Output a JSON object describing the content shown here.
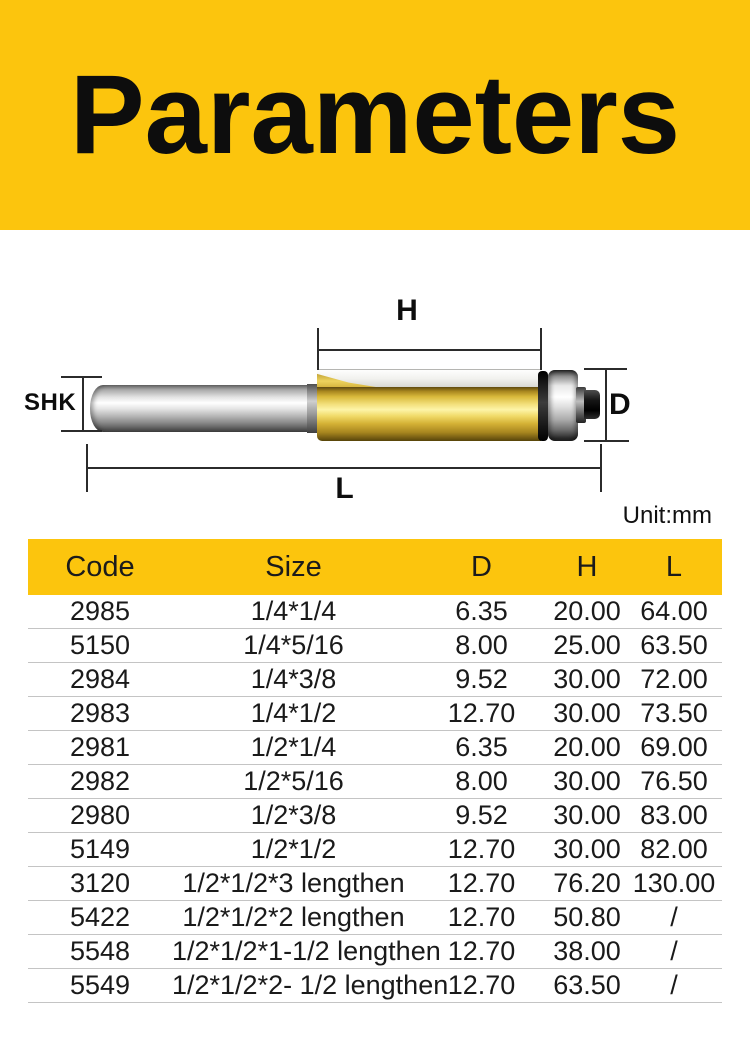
{
  "banner": {
    "title": "Parameters",
    "bg_color": "#FCC50D",
    "text_color": "#0D0D0D"
  },
  "diagram": {
    "label_h": "H",
    "label_shk": "SHK",
    "label_d": "D",
    "label_l": "L",
    "unit_note": "Unit:mm",
    "shank_color": "silver",
    "cutter_color": "gold",
    "line_color": "#2B2B2B"
  },
  "table": {
    "header_bg": "#FCC50D",
    "separator_color": "#C4C4C4",
    "columns": [
      "Code",
      "Size",
      "D",
      "H",
      "L"
    ],
    "rows": [
      [
        "2985",
        "1/4*1/4",
        "6.35",
        "20.00",
        "64.00"
      ],
      [
        "5150",
        "1/4*5/16",
        "8.00",
        "25.00",
        "63.50"
      ],
      [
        "2984",
        "1/4*3/8",
        "9.52",
        "30.00",
        "72.00"
      ],
      [
        "2983",
        "1/4*1/2",
        "12.70",
        "30.00",
        "73.50"
      ],
      [
        "2981",
        "1/2*1/4",
        "6.35",
        "20.00",
        "69.00"
      ],
      [
        "2982",
        "1/2*5/16",
        "8.00",
        "30.00",
        "76.50"
      ],
      [
        "2980",
        "1/2*3/8",
        "9.52",
        "30.00",
        "83.00"
      ],
      [
        "5149",
        "1/2*1/2",
        "12.70",
        "30.00",
        "82.00"
      ],
      [
        "3120",
        "1/2*1/2*3 lengthen",
        "12.70",
        "76.20",
        "130.00"
      ],
      [
        "5422",
        "1/2*1/2*2 lengthen",
        "12.70",
        "50.80",
        "/"
      ],
      [
        "5548",
        "1/2*1/2*1-1/2 lengthen",
        "12.70",
        "38.00",
        "/"
      ],
      [
        "5549",
        "1/2*1/2*2- 1/2 lengthen",
        "12.70",
        "63.50",
        "/"
      ]
    ]
  }
}
